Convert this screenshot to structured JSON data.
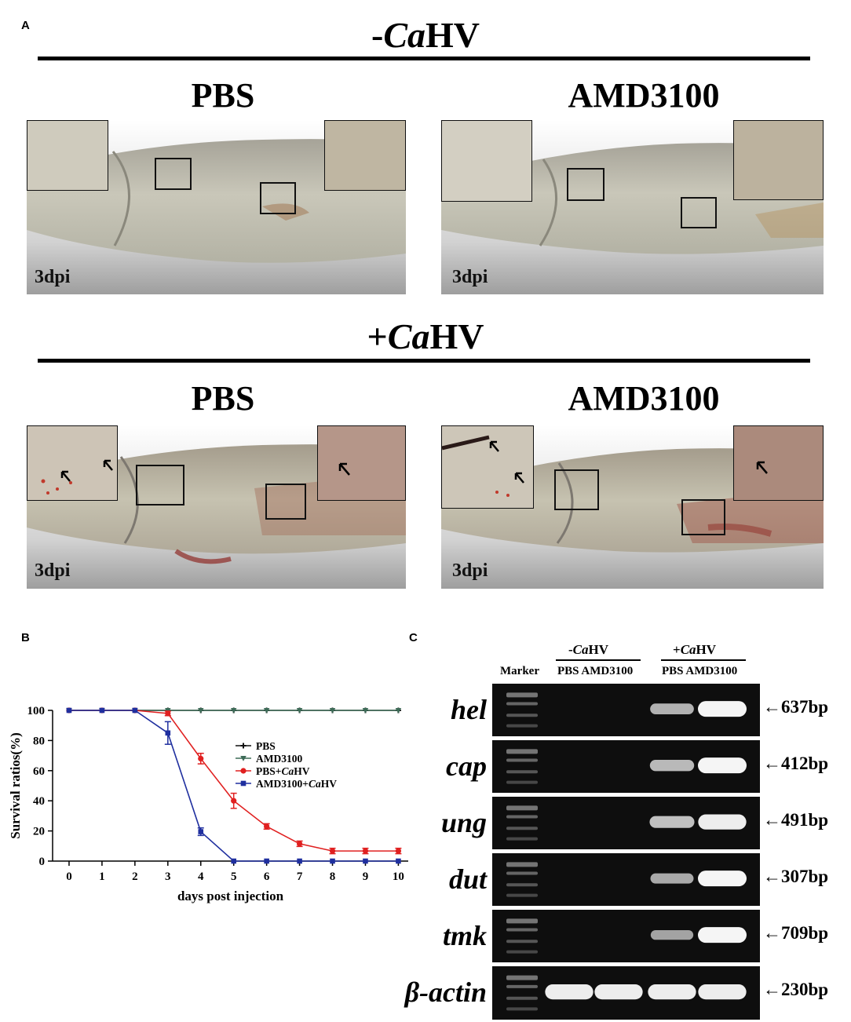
{
  "panel_labels": {
    "a": "A",
    "b": "B",
    "c": "C"
  },
  "panel_a": {
    "minus_prefix": "-",
    "plus_prefix": "+",
    "virus_italic": "Ca",
    "virus_rest": "HV",
    "col_left": "PBS",
    "col_right": "AMD3100",
    "time_label": "3dpi"
  },
  "chart_data": {
    "type": "line",
    "xlabel": "days post injection",
    "ylabel": "Survival ratios(%)",
    "xlim": [
      -0.5,
      10.3
    ],
    "ylim": [
      0,
      100
    ],
    "x": [
      0,
      1,
      2,
      3,
      4,
      5,
      6,
      7,
      8,
      9,
      10
    ],
    "xticks": [
      "0",
      "1",
      "2",
      "3",
      "4",
      "5",
      "6",
      "7",
      "8",
      "9",
      "10"
    ],
    "yticks": [
      "0",
      "20",
      "40",
      "60",
      "80",
      "100"
    ],
    "legend_position": "center-right",
    "series": [
      {
        "name": "PBS",
        "color": "#111111",
        "marker": "cross",
        "values": [
          100,
          100,
          100,
          100,
          100,
          100,
          100,
          100,
          100,
          100,
          100
        ],
        "errors": [
          0,
          0,
          0,
          0,
          0,
          0,
          0,
          0,
          0,
          0,
          0
        ]
      },
      {
        "name": "AMD3100",
        "color": "#3d6b57",
        "marker": "triangle-down",
        "values": [
          100,
          100,
          100,
          100,
          100,
          100,
          100,
          100,
          100,
          100,
          100
        ],
        "errors": [
          0,
          0,
          0,
          0,
          0,
          0,
          0,
          0,
          0,
          0,
          0
        ]
      },
      {
        "name": "PBS+CaHV",
        "name_plain": "PBS+",
        "name_italic": "Ca",
        "name_rest": "HV",
        "color": "#e02020",
        "marker": "circle",
        "values": [
          100,
          100,
          100,
          98,
          68,
          40,
          23,
          11.5,
          6.7,
          6.7,
          6.7
        ],
        "errors": [
          0,
          0,
          0,
          1.5,
          3.5,
          5,
          1.8,
          1.8,
          1.8,
          1.8,
          1.8
        ]
      },
      {
        "name": "AMD3100+CaHV",
        "name_plain": "AMD3100+",
        "name_italic": "Ca",
        "name_rest": "HV",
        "color": "#1f2f9f",
        "marker": "square",
        "values": [
          100,
          100,
          100,
          85,
          19.5,
          0,
          0,
          0,
          0,
          0,
          0
        ],
        "errors": [
          0,
          0,
          0,
          7.5,
          2.5,
          0,
          0,
          0,
          0,
          0,
          0
        ]
      }
    ]
  },
  "panel_c": {
    "marker_label": "Marker",
    "group_minus": {
      "prefix": "-",
      "italic": "Ca",
      "rest": "HV"
    },
    "group_plus": {
      "prefix": "+",
      "italic": "Ca",
      "rest": "HV"
    },
    "lane_labels_minus": "PBS AMD3100",
    "lane_labels_plus": "PBS AMD3100",
    "genes": [
      {
        "name": "hel",
        "size": "637bp",
        "bands": [
          0,
          0,
          0,
          0.55,
          1.0
        ]
      },
      {
        "name": "cap",
        "size": "412bp",
        "bands": [
          0,
          0,
          0,
          0.6,
          1.0
        ]
      },
      {
        "name": "ung",
        "size": "491bp",
        "bands": [
          0,
          0,
          0,
          0.65,
          0.95
        ]
      },
      {
        "name": "dut",
        "size": "307bp",
        "bands": [
          0,
          0,
          0,
          0.5,
          1.0
        ]
      },
      {
        "name": "tmk",
        "size": "709bp",
        "bands": [
          0,
          0,
          0,
          0.45,
          1.0
        ]
      },
      {
        "name": "β-actin",
        "size": "230bp",
        "bands": [
          0,
          0.95,
          0.95,
          0.95,
          0.95
        ]
      }
    ]
  }
}
